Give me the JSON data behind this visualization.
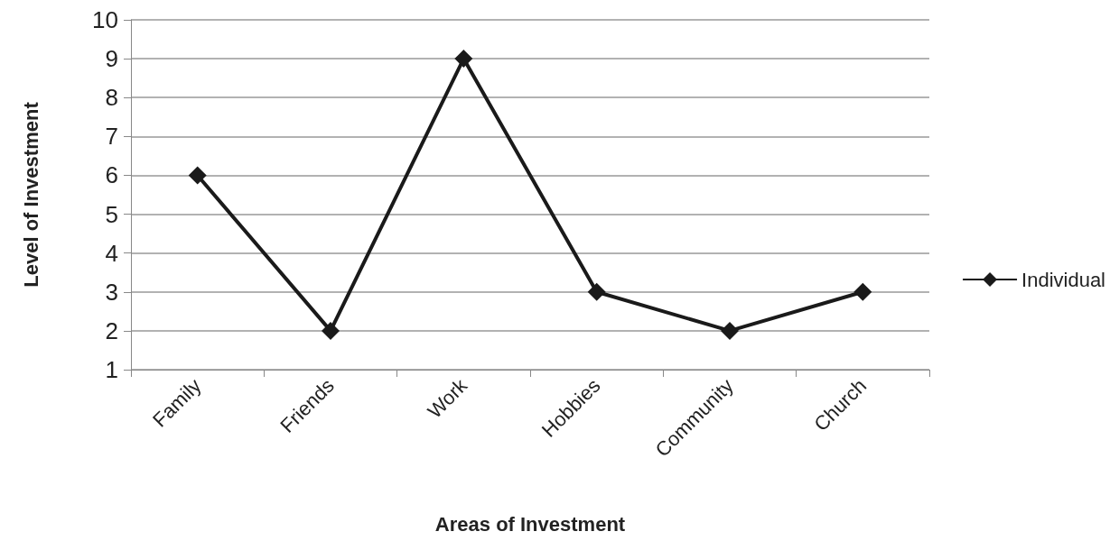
{
  "chart_data": {
    "type": "line",
    "xlabel": "Areas of Investment",
    "ylabel": "Level of Investment",
    "categories": [
      "Family",
      "Friends",
      "Work",
      "Hobbies",
      "Community",
      "Church"
    ],
    "series": [
      {
        "name": "Individual",
        "color": "#1a1a1a",
        "values": [
          6,
          2,
          9,
          3,
          2,
          3
        ]
      }
    ],
    "ylim": [
      1,
      10
    ],
    "yticks": [
      1,
      2,
      3,
      4,
      5,
      6,
      7,
      8,
      9,
      10
    ],
    "grid": "y",
    "legend": "right",
    "marker": "diamond",
    "line_style": "solid"
  }
}
